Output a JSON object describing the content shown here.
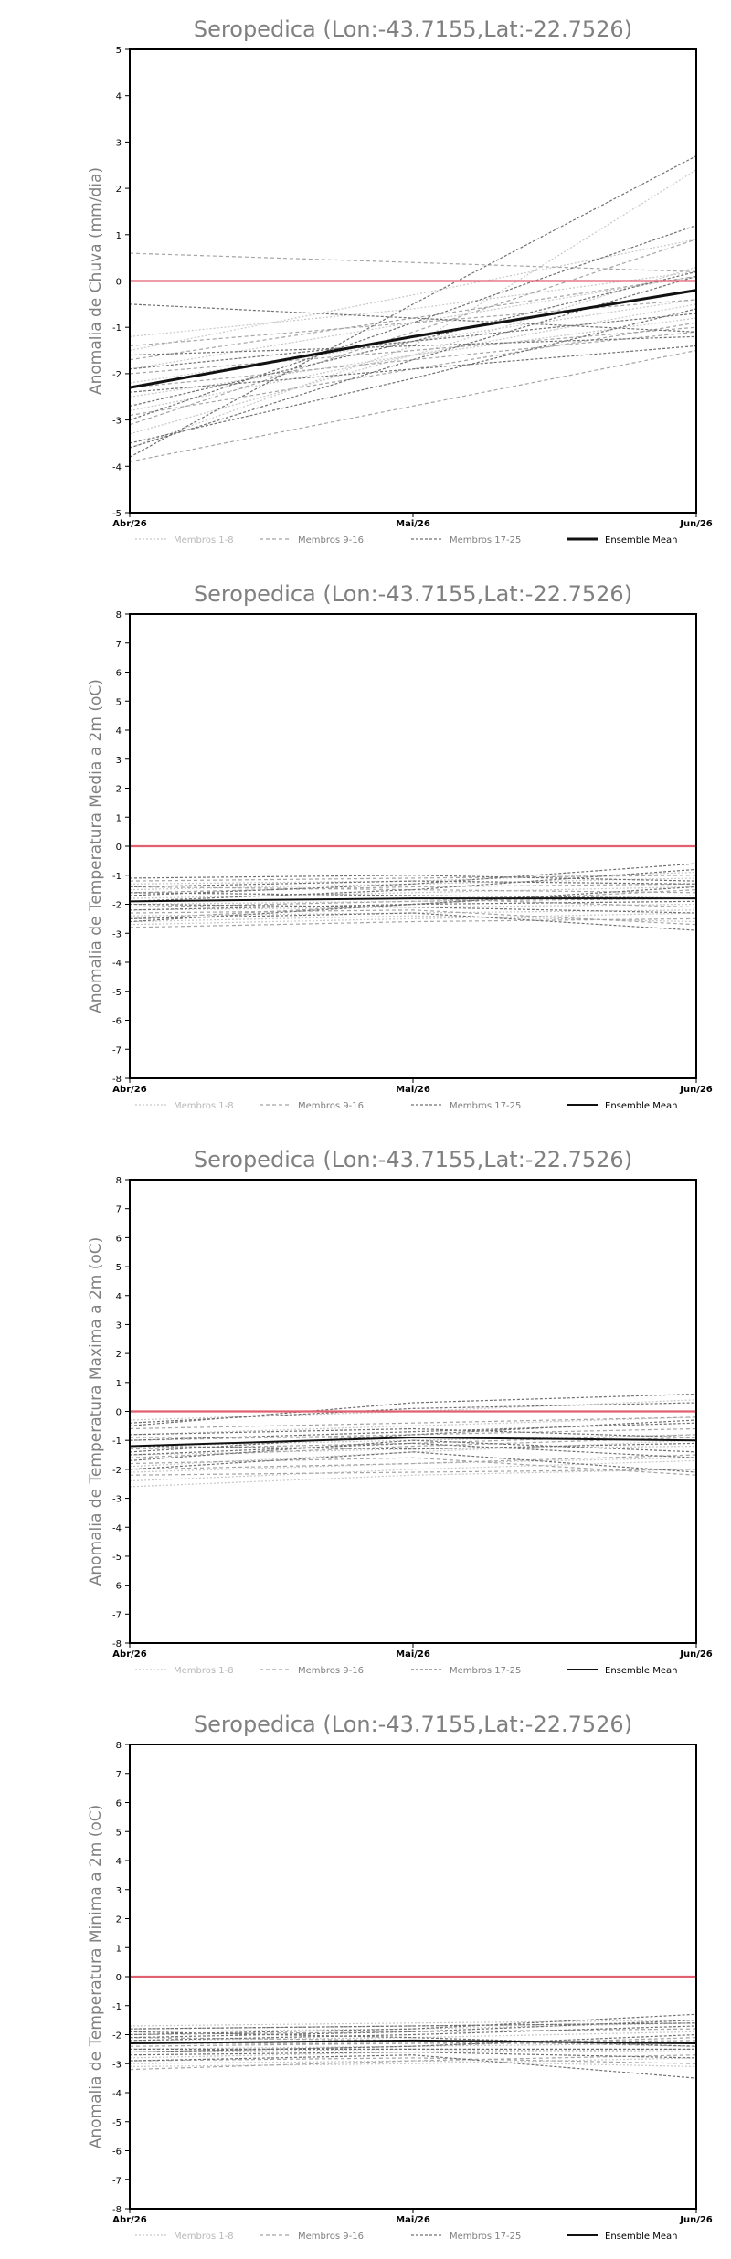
{
  "chart_data": [
    {
      "type": "line",
      "title": "Seropedica (Lon:-43.7155,Lat:-22.7526)",
      "xlabel": "",
      "ylabel": "Anomalia de Chuva (mm/dia)",
      "categories": [
        "Abr/26",
        "Mai/26",
        "Jun/26"
      ],
      "ylim": [
        -5,
        5
      ],
      "yticks": [
        -5,
        -4,
        -3,
        -2,
        -1,
        0,
        1,
        2,
        3,
        4,
        5
      ],
      "reference_line": {
        "y": 0,
        "color": "#e06070"
      },
      "grid": false,
      "legend": [
        "Membros 1-8",
        "Membros 9-16",
        "Membros 17-25",
        "Ensemble Mean"
      ],
      "legend_position": "bottom",
      "groups": [
        {
          "name": "Membros 1-8",
          "color": "#c8c8c8",
          "series": [
            [
              -1.9,
              -0.9,
              0.1
            ],
            [
              -1.5,
              -0.3,
              0.9
            ],
            [
              -3.6,
              -1.4,
              2.4
            ],
            [
              -2.5,
              -1.6,
              -0.8
            ],
            [
              -2.8,
              -1.6,
              -0.5
            ],
            [
              -1.2,
              -0.6,
              0.2
            ],
            [
              -3.3,
              -1.6,
              0.3
            ],
            [
              -2.2,
              -1.3,
              -0.4
            ]
          ]
        },
        {
          "name": "Membros 9-16",
          "color": "#a5a5a5",
          "series": [
            [
              -3.9,
              -2.7,
              -1.5
            ],
            [
              0.6,
              0.4,
              0.2
            ],
            [
              -1.4,
              -0.9,
              -0.4
            ],
            [
              -2.9,
              -1.9,
              -0.9
            ],
            [
              -1.7,
              -0.8,
              0.1
            ],
            [
              -2.0,
              -1.5,
              -1.0
            ],
            [
              -3.1,
              -1.1,
              0.9
            ],
            [
              -2.3,
              -1.7,
              -1.1
            ]
          ]
        },
        {
          "name": "Membros 17-25",
          "color": "#707070",
          "series": [
            [
              -3.8,
              -0.5,
              2.7
            ],
            [
              -0.5,
              -0.8,
              -1.1
            ],
            [
              -3.5,
              -2.1,
              -0.6
            ],
            [
              -2.7,
              -1.3,
              0.2
            ],
            [
              -1.9,
              -1.3,
              -0.7
            ],
            [
              -3.0,
              -0.9,
              1.2
            ],
            [
              -1.6,
              -1.4,
              -1.2
            ],
            [
              -3.6,
              -1.7,
              0.1
            ],
            [
              -2.4,
              -1.9,
              -1.4
            ]
          ]
        }
      ],
      "ensemble_mean": [
        -2.3,
        -1.2,
        -0.2
      ]
    },
    {
      "type": "line",
      "title": "Seropedica (Lon:-43.7155,Lat:-22.7526)",
      "xlabel": "",
      "ylabel": "Anomalia de Temperatura Media a 2m (oC)",
      "categories": [
        "Abr/26",
        "Mai/26",
        "Jun/26"
      ],
      "ylim": [
        -8,
        8
      ],
      "yticks": [
        -8,
        -7,
        -6,
        -5,
        -4,
        -3,
        -2,
        -1,
        0,
        1,
        2,
        3,
        4,
        5,
        6,
        7,
        8
      ],
      "reference_line": {
        "y": 0,
        "color": "#e06070"
      },
      "grid": false,
      "legend": [
        "Membros 1-8",
        "Membros 9-16",
        "Membros 17-25",
        "Ensemble Mean"
      ],
      "legend_position": "bottom",
      "groups": [
        {
          "name": "Membros 1-8",
          "color": "#c8c8c8",
          "series": [
            [
              -2.7,
              -2.5,
              -2.3
            ],
            [
              -1.5,
              -1.3,
              -1.1
            ],
            [
              -2.2,
              -2.1,
              -2.0
            ],
            [
              -1.8,
              -1.6,
              -1.4
            ],
            [
              -2.6,
              -2.4,
              -2.6
            ],
            [
              -1.3,
              -1.2,
              -0.9
            ],
            [
              -2.0,
              -1.9,
              -1.7
            ],
            [
              -2.4,
              -2.3,
              -2.2
            ]
          ]
        },
        {
          "name": "Membros 9-16",
          "color": "#a5a5a5",
          "series": [
            [
              -2.8,
              -2.6,
              -2.5
            ],
            [
              -1.2,
              -1.1,
              -1.0
            ],
            [
              -1.9,
              -1.8,
              -2.1
            ],
            [
              -2.3,
              -2.2,
              -2.7
            ],
            [
              -1.6,
              -1.4,
              -1.3
            ],
            [
              -2.1,
              -1.9,
              -1.8
            ],
            [
              -1.4,
              -1.5,
              -1.6
            ],
            [
              -2.5,
              -2.0,
              -1.5
            ]
          ]
        },
        {
          "name": "Membros 17-25",
          "color": "#707070",
          "series": [
            [
              -1.7,
              -1.3,
              -0.6
            ],
            [
              -2.2,
              -2.0,
              -1.9
            ],
            [
              -1.4,
              -1.2,
              -1.3
            ],
            [
              -2.5,
              -2.3,
              -2.9
            ],
            [
              -1.9,
              -1.5,
              -0.8
            ],
            [
              -2.0,
              -2.1,
              -2.3
            ],
            [
              -1.1,
              -1.0,
              -1.2
            ],
            [
              -2.6,
              -2.0,
              -1.4
            ],
            [
              -1.6,
              -1.7,
              -1.8
            ]
          ]
        }
      ],
      "ensemble_mean": [
        -1.9,
        -1.8,
        -1.8
      ]
    },
    {
      "type": "line",
      "title": "Seropedica (Lon:-43.7155,Lat:-22.7526)",
      "xlabel": "",
      "ylabel": "Anomalia de Temperatura Maxima a 2m (oC)",
      "categories": [
        "Abr/26",
        "Mai/26",
        "Jun/26"
      ],
      "ylim": [
        -8,
        8
      ],
      "yticks": [
        -8,
        -7,
        -6,
        -5,
        -4,
        -3,
        -2,
        -1,
        0,
        1,
        2,
        3,
        4,
        5,
        6,
        7,
        8
      ],
      "reference_line": {
        "y": 0,
        "color": "#e06070"
      },
      "grid": false,
      "legend": [
        "Membros 1-8",
        "Membros 9-16",
        "Membros 17-25",
        "Ensemble Mean"
      ],
      "legend_position": "bottom",
      "groups": [
        {
          "name": "Membros 1-8",
          "color": "#c8c8c8",
          "series": [
            [
              -2.6,
              -2.2,
              -2.0
            ],
            [
              -0.8,
              -0.5,
              -0.2
            ],
            [
              -1.5,
              -1.3,
              -1.2
            ],
            [
              -2.1,
              -1.8,
              -1.6
            ],
            [
              -0.3,
              0.0,
              0.4
            ],
            [
              -1.9,
              -1.4,
              -1.0
            ],
            [
              -1.2,
              -1.0,
              -0.8
            ],
            [
              -2.4,
              -2.0,
              -1.7
            ]
          ]
        },
        {
          "name": "Membros 9-16",
          "color": "#a5a5a5",
          "series": [
            [
              -2.2,
              -2.1,
              -2.0
            ],
            [
              -1.0,
              -0.8,
              -0.6
            ],
            [
              -1.6,
              -1.2,
              -0.9
            ],
            [
              -0.6,
              -0.4,
              -0.2
            ],
            [
              -1.8,
              -1.6,
              -2.2
            ],
            [
              -1.3,
              -1.1,
              -0.8
            ],
            [
              -2.0,
              -1.8,
              -1.5
            ],
            [
              -0.9,
              -0.9,
              -1.0
            ]
          ]
        },
        {
          "name": "Membros 17-25",
          "color": "#707070",
          "series": [
            [
              -0.5,
              0.3,
              0.6
            ],
            [
              -1.4,
              -0.8,
              -0.3
            ],
            [
              -1.0,
              -0.7,
              -0.4
            ],
            [
              -1.7,
              -1.0,
              -1.4
            ],
            [
              -0.4,
              0.1,
              0.3
            ],
            [
              -1.2,
              -1.3,
              -1.1
            ],
            [
              -2.0,
              -1.4,
              -2.1
            ],
            [
              -0.8,
              -0.6,
              -0.9
            ],
            [
              -1.5,
              -1.1,
              -1.6
            ]
          ]
        }
      ],
      "ensemble_mean": [
        -1.2,
        -0.9,
        -1.0
      ]
    },
    {
      "type": "line",
      "title": "Seropedica (Lon:-43.7155,Lat:-22.7526)",
      "xlabel": "",
      "ylabel": "Anomalia de Temperatura Minima a 2m (oC)",
      "categories": [
        "Abr/26",
        "Mai/26",
        "Jun/26"
      ],
      "ylim": [
        -8,
        8
      ],
      "yticks": [
        -8,
        -7,
        -6,
        -5,
        -4,
        -3,
        -2,
        -1,
        0,
        1,
        2,
        3,
        4,
        5,
        6,
        7,
        8
      ],
      "reference_line": {
        "y": 0,
        "color": "#e06070"
      },
      "grid": false,
      "legend": [
        "Membros 1-8",
        "Membros 9-16",
        "Membros 17-25",
        "Ensemble Mean"
      ],
      "legend_position": "bottom",
      "groups": [
        {
          "name": "Membros 1-8",
          "color": "#c8c8c8",
          "series": [
            [
              -3.1,
              -3.0,
              -2.8
            ],
            [
              -1.9,
              -1.8,
              -1.6
            ],
            [
              -2.5,
              -2.4,
              -2.3
            ],
            [
              -2.8,
              -2.6,
              -2.5
            ],
            [
              -2.2,
              -2.1,
              -1.9
            ],
            [
              -3.0,
              -2.9,
              -3.1
            ],
            [
              -1.7,
              -1.6,
              -1.5
            ],
            [
              -2.6,
              -2.5,
              -2.6
            ]
          ]
        },
        {
          "name": "Membros 9-16",
          "color": "#a5a5a5",
          "series": [
            [
              -2.0,
              -1.9,
              -1.8
            ],
            [
              -3.2,
              -2.9,
              -2.7
            ],
            [
              -2.4,
              -2.3,
              -2.2
            ],
            [
              -1.8,
              -1.7,
              -1.6
            ],
            [
              -2.9,
              -2.8,
              -3.0
            ],
            [
              -2.1,
              -2.2,
              -2.4
            ],
            [
              -2.6,
              -2.4,
              -2.1
            ],
            [
              -2.3,
              -2.3,
              -2.3
            ]
          ]
        },
        {
          "name": "Membros 17-25",
          "color": "#707070",
          "series": [
            [
              -2.0,
              -1.8,
              -1.3
            ],
            [
              -2.6,
              -2.4,
              -2.0
            ],
            [
              -1.8,
              -1.7,
              -1.6
            ],
            [
              -2.9,
              -2.7,
              -3.5
            ],
            [
              -2.2,
              -2.0,
              -1.7
            ],
            [
              -2.5,
              -2.5,
              -2.5
            ],
            [
              -1.9,
              -2.1,
              -2.4
            ],
            [
              -2.7,
              -2.6,
              -2.8
            ],
            [
              -2.1,
              -1.9,
              -1.5
            ]
          ]
        }
      ],
      "ensemble_mean": [
        -2.3,
        -2.2,
        -2.3
      ]
    }
  ]
}
